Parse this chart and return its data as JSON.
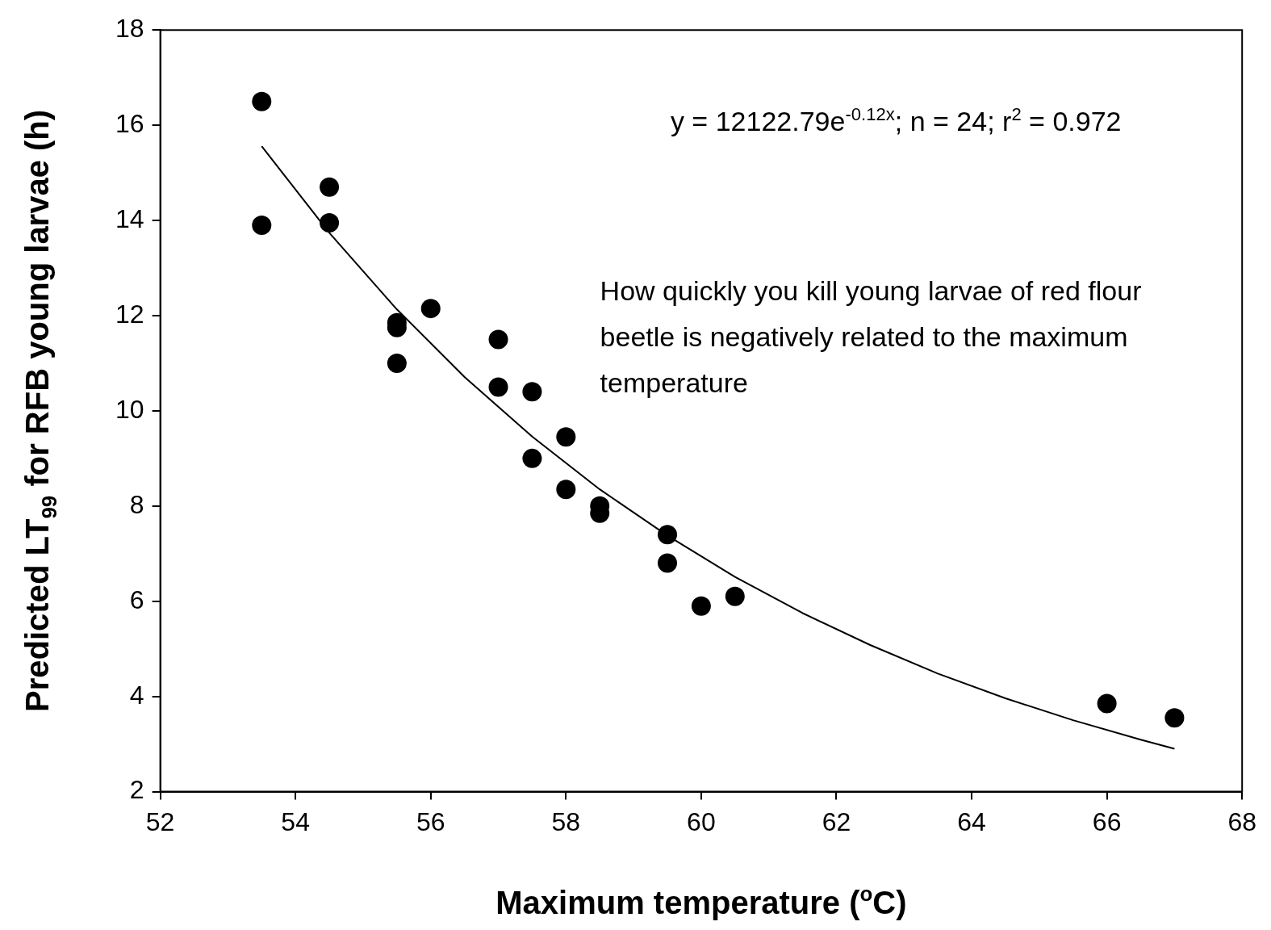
{
  "chart_data": {
    "type": "scatter",
    "xlabel": "Maximum temperature ($^{o}$C)",
    "ylabel": "Predicted LT$_{99}$ for RFB young larvae (h)",
    "annotations": [
      "y = 12122.79e$^{-0.12x}$; n = 24; r$^{2}$ = 0.972",
      "How quickly you kill young larvae of red flour beetle is negatively related to the maximum temperature"
    ],
    "xlim": [
      52,
      68
    ],
    "xticks": [
      52,
      54,
      56,
      58,
      60,
      62,
      64,
      66,
      68
    ],
    "ylim": [
      2,
      18
    ],
    "yticks": [
      2,
      4,
      6,
      8,
      10,
      12,
      14,
      16,
      18
    ],
    "grid": false,
    "legend": false,
    "marker": "circle",
    "series": [
      {
        "type": "scatter",
        "color": "#000000",
        "x": [
          53.5,
          53.5,
          54.5,
          54.5,
          55.5,
          55.5,
          55.5,
          56,
          57,
          57,
          57.5,
          57.5,
          58,
          58,
          58.5,
          58.5,
          59.5,
          59.5,
          60,
          60.5,
          66,
          67
        ],
        "values": [
          16.5,
          13.9,
          14.7,
          13.95,
          11.85,
          11.75,
          11.0,
          12.15,
          11.5,
          10.5,
          10.4,
          9.0,
          9.45,
          8.35,
          8.0,
          7.85,
          7.4,
          6.8,
          5.9,
          6.1,
          3.85,
          3.55
        ]
      },
      {
        "type": "line",
        "color": "#000000",
        "marker": "none",
        "x": [
          53.5,
          54.5,
          55.5,
          56.5,
          57.5,
          58.5,
          59.5,
          60.5,
          61.5,
          62.5,
          63.5,
          64.5,
          65.5,
          66.5,
          67
        ],
        "values": [
          15.56,
          13.74,
          12.13,
          10.71,
          9.46,
          8.35,
          7.38,
          6.51,
          5.75,
          5.08,
          4.48,
          3.96,
          3.5,
          3.09,
          2.9
        ]
      }
    ]
  }
}
